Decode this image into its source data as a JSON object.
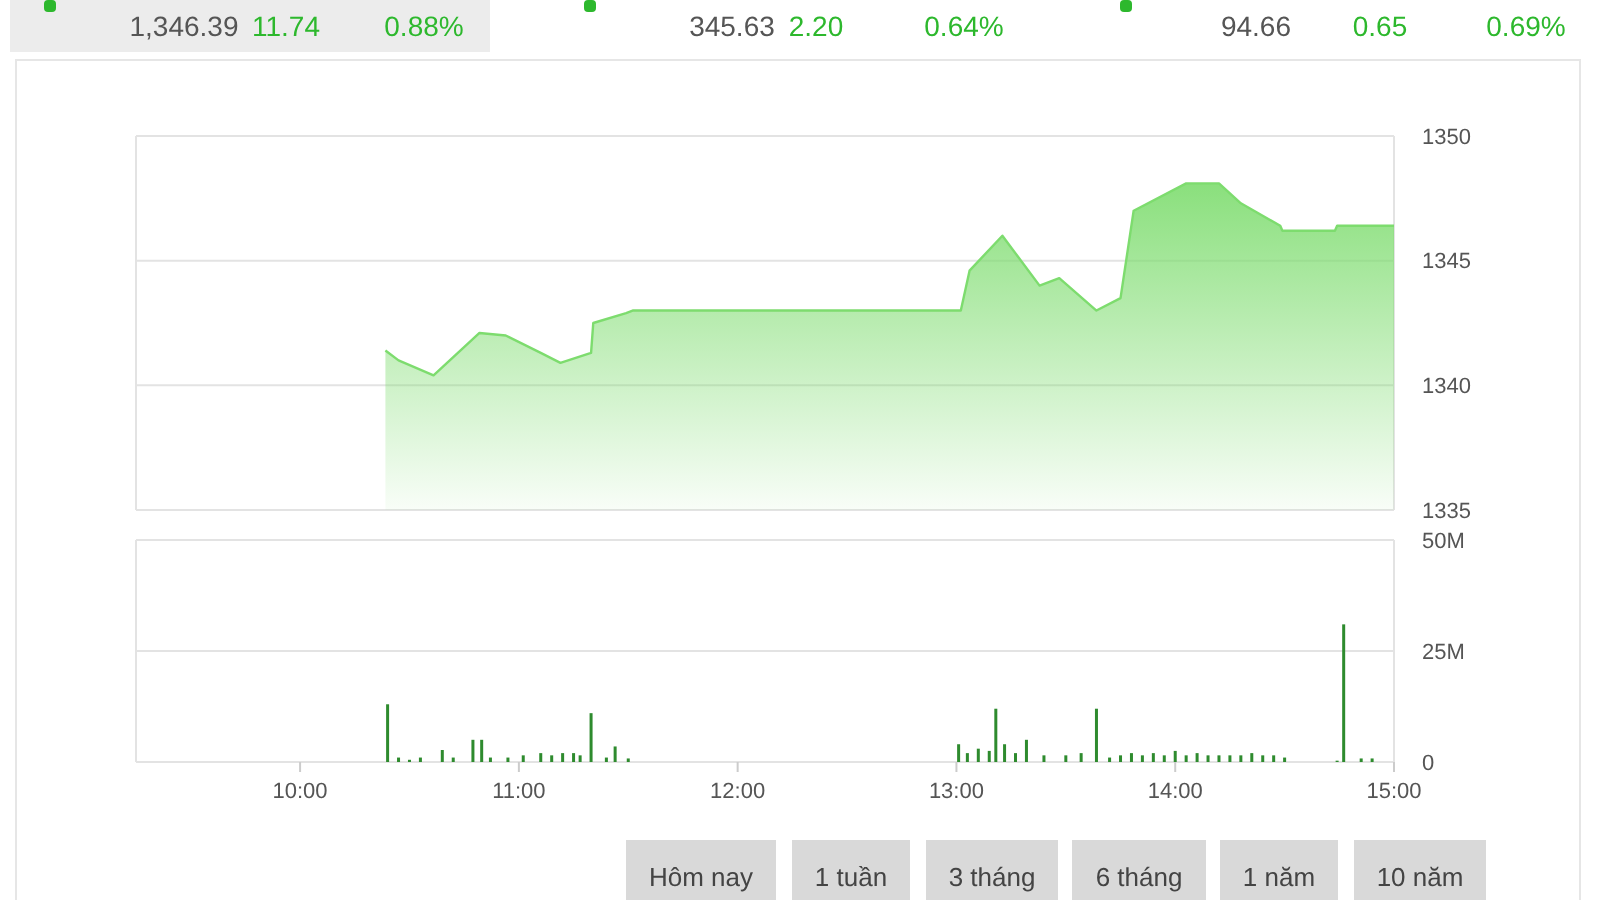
{
  "chart_data": [
    {
      "type": "area",
      "color": "#7ddc6e",
      "x": [
        10.39,
        10.45,
        10.61,
        10.82,
        10.94,
        11.1,
        11.19,
        11.33,
        11.34,
        11.49,
        11.52,
        13.02,
        13.06,
        13.21,
        13.38,
        13.47,
        13.64,
        13.75,
        13.81,
        14.05,
        14.2,
        14.3,
        14.48,
        14.49,
        14.73,
        14.74,
        15
      ],
      "values": [
        1341.4,
        1341.0,
        1340.4,
        1342.1,
        1342.0,
        1341.3,
        1340.9,
        1341.3,
        1342.5,
        1342.9,
        1343.0,
        1343.0,
        1344.6,
        1346.0,
        1344.0,
        1344.3,
        1343.0,
        1343.5,
        1347.0,
        1348.1,
        1348.1,
        1347.3,
        1346.4,
        1346.2,
        1346.2,
        1346.4,
        1346.4
      ],
      "xlim": [
        9.25,
        15
      ],
      "ylim": [
        1335,
        1350
      ],
      "yticks": [
        1335,
        1340,
        1345,
        1350
      ],
      "grid": "y",
      "tick_labels": "y",
      "annotations": [
        "1,346.39",
        "11.74",
        "0.88%",
        "345.63",
        "2.20",
        "0.64%",
        "94.66",
        "0.65",
        "0.69%",
        "Hôm nay",
        "1 tuần",
        "3 tháng",
        "6 tháng",
        "1 năm",
        "10 năm"
      ]
    },
    {
      "type": "bar",
      "color": "#2e8b2e",
      "x": [
        10.4,
        10.45,
        10.5,
        10.55,
        10.65,
        10.7,
        10.79,
        10.83,
        10.87,
        10.95,
        11.02,
        11.1,
        11.15,
        11.2,
        11.25,
        11.28,
        11.33,
        11.4,
        11.44,
        11.5,
        13.01,
        13.05,
        13.1,
        13.15,
        13.18,
        13.22,
        13.27,
        13.32,
        13.4,
        13.5,
        13.57,
        13.64,
        13.7,
        13.75,
        13.8,
        13.85,
        13.9,
        13.95,
        14.0,
        14.05,
        14.1,
        14.15,
        14.2,
        14.25,
        14.3,
        14.35,
        14.4,
        14.45,
        14.5,
        14.74,
        14.77,
        14.85,
        14.9
      ],
      "values": [
        13,
        1,
        0.5,
        1,
        2.7,
        1,
        5,
        5,
        1,
        1,
        1.5,
        2,
        1.5,
        2,
        2,
        1.5,
        11,
        1,
        3.5,
        0.8,
        4,
        2,
        3,
        2.5,
        12,
        4,
        2,
        5,
        1.5,
        1.5,
        2,
        12,
        1,
        1.5,
        2,
        1.5,
        2,
        1.5,
        2.5,
        1.5,
        2,
        1.5,
        1.5,
        1.5,
        1.5,
        2,
        1.5,
        1.5,
        1,
        0.3,
        31,
        0.8,
        0.8
      ],
      "xlim": [
        9.25,
        15
      ],
      "ylim": [
        0,
        50
      ],
      "yticks": [
        0,
        {
          "value": 25,
          "label": "25M"
        },
        {
          "value": 50,
          "label": "50M"
        }
      ],
      "xticks": [
        {
          "value": 10,
          "label": "10:00"
        },
        {
          "value": 11,
          "label": "11:00"
        },
        {
          "value": 12,
          "label": "12:00"
        },
        {
          "value": 13,
          "label": "13:00"
        },
        {
          "value": 14,
          "label": "14:00"
        },
        {
          "value": 15,
          "label": "15:00"
        }
      ],
      "grid": "y"
    }
  ]
}
